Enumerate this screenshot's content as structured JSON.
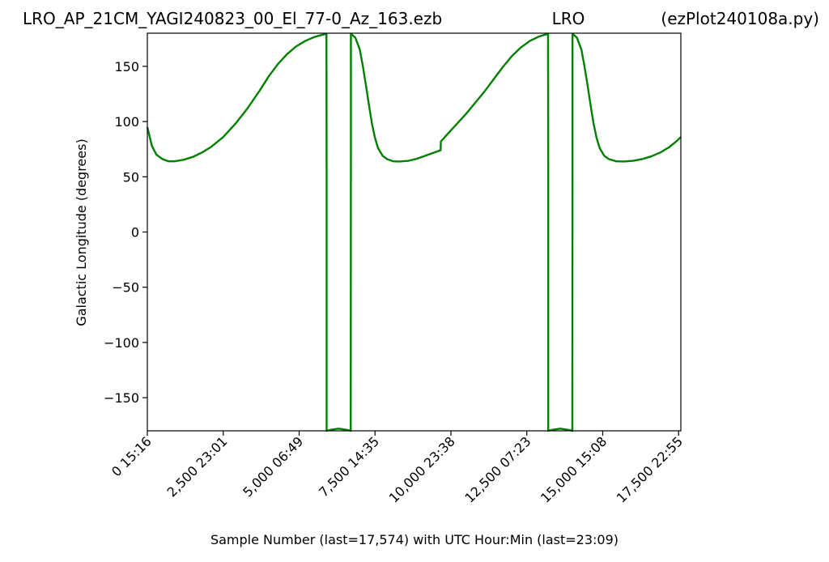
{
  "header": {
    "left": "LRO_AP_21CM_YAGI240823_00_El_77-0_Az_163.ezb",
    "center": "LRO",
    "right": "(ezPlot240108a.py)"
  },
  "chart_data": {
    "type": "line",
    "xlabel": "Sample Number (last=17,574) with UTC Hour:Min (last=23:09)",
    "ylabel": "Galactic Longitude (degrees)",
    "xlim": [
      0,
      17574
    ],
    "ylim": [
      -180,
      180
    ],
    "grid": false,
    "y_ticks": [
      150,
      100,
      50,
      0,
      -50,
      -100,
      -150
    ],
    "y_tick_labels": [
      "150",
      "100",
      "50",
      "0",
      "−50",
      "−100",
      "−150"
    ],
    "x_ticks": [
      0,
      2500,
      5000,
      7500,
      10000,
      12500,
      15000,
      17500
    ],
    "x_tick_labels": [
      "0  15:16",
      "2,500  23:01",
      "5,000  06:49",
      "7,500  14:35",
      "10,000  23:38",
      "12,500  07:23",
      "15,000  15:08",
      "17,500  22:55"
    ],
    "series": [
      {
        "color": "#008000",
        "points": [
          [
            0,
            95
          ],
          [
            150,
            78
          ],
          [
            300,
            70
          ],
          [
            500,
            66
          ],
          [
            700,
            64
          ],
          [
            900,
            64
          ],
          [
            1200,
            65.5
          ],
          [
            1500,
            68
          ],
          [
            1800,
            72
          ],
          [
            2100,
            77
          ],
          [
            2500,
            86
          ],
          [
            2900,
            98
          ],
          [
            3300,
            112
          ],
          [
            3700,
            128
          ],
          [
            4000,
            141
          ],
          [
            4300,
            152
          ],
          [
            4600,
            161
          ],
          [
            4900,
            168
          ],
          [
            5200,
            173
          ],
          [
            5500,
            176.5
          ],
          [
            5750,
            178.5
          ],
          [
            5900,
            179.5
          ],
          [
            5905,
            60
          ],
          [
            5905,
            -180
          ],
          [
            6050,
            -179
          ],
          [
            6300,
            -178
          ],
          [
            6550,
            -179
          ],
          [
            6700,
            -180
          ],
          [
            6705,
            60
          ],
          [
            6705,
            179.5
          ],
          [
            6850,
            176
          ],
          [
            7000,
            165
          ],
          [
            7100,
            150
          ],
          [
            7200,
            133
          ],
          [
            7300,
            115
          ],
          [
            7400,
            98
          ],
          [
            7500,
            85
          ],
          [
            7600,
            76
          ],
          [
            7750,
            69
          ],
          [
            7900,
            66
          ],
          [
            8100,
            64
          ],
          [
            8300,
            63.8
          ],
          [
            8600,
            64.5
          ],
          [
            8900,
            66.5
          ],
          [
            9200,
            69.5
          ],
          [
            9500,
            72.5
          ],
          [
            9660,
            74
          ],
          [
            9670,
            82
          ],
          [
            9900,
            89
          ],
          [
            10200,
            98
          ],
          [
            10500,
            107
          ],
          [
            10800,
            117
          ],
          [
            11100,
            127
          ],
          [
            11400,
            138
          ],
          [
            11700,
            149
          ],
          [
            12000,
            159
          ],
          [
            12300,
            167
          ],
          [
            12600,
            173
          ],
          [
            12900,
            177
          ],
          [
            13200,
            179.5
          ],
          [
            13205,
            60
          ],
          [
            13205,
            -180
          ],
          [
            13350,
            -179
          ],
          [
            13600,
            -178
          ],
          [
            13850,
            -179
          ],
          [
            14000,
            -180
          ],
          [
            14005,
            60
          ],
          [
            14005,
            179.5
          ],
          [
            14150,
            176
          ],
          [
            14300,
            165
          ],
          [
            14400,
            150
          ],
          [
            14500,
            133
          ],
          [
            14600,
            115
          ],
          [
            14700,
            98
          ],
          [
            14800,
            85
          ],
          [
            14900,
            76
          ],
          [
            15050,
            69
          ],
          [
            15200,
            66
          ],
          [
            15450,
            64
          ],
          [
            15700,
            63.8
          ],
          [
            16000,
            64.5
          ],
          [
            16300,
            66
          ],
          [
            16600,
            68.5
          ],
          [
            16900,
            72
          ],
          [
            17200,
            77
          ],
          [
            17400,
            81.5
          ],
          [
            17574,
            86
          ]
        ]
      }
    ]
  }
}
